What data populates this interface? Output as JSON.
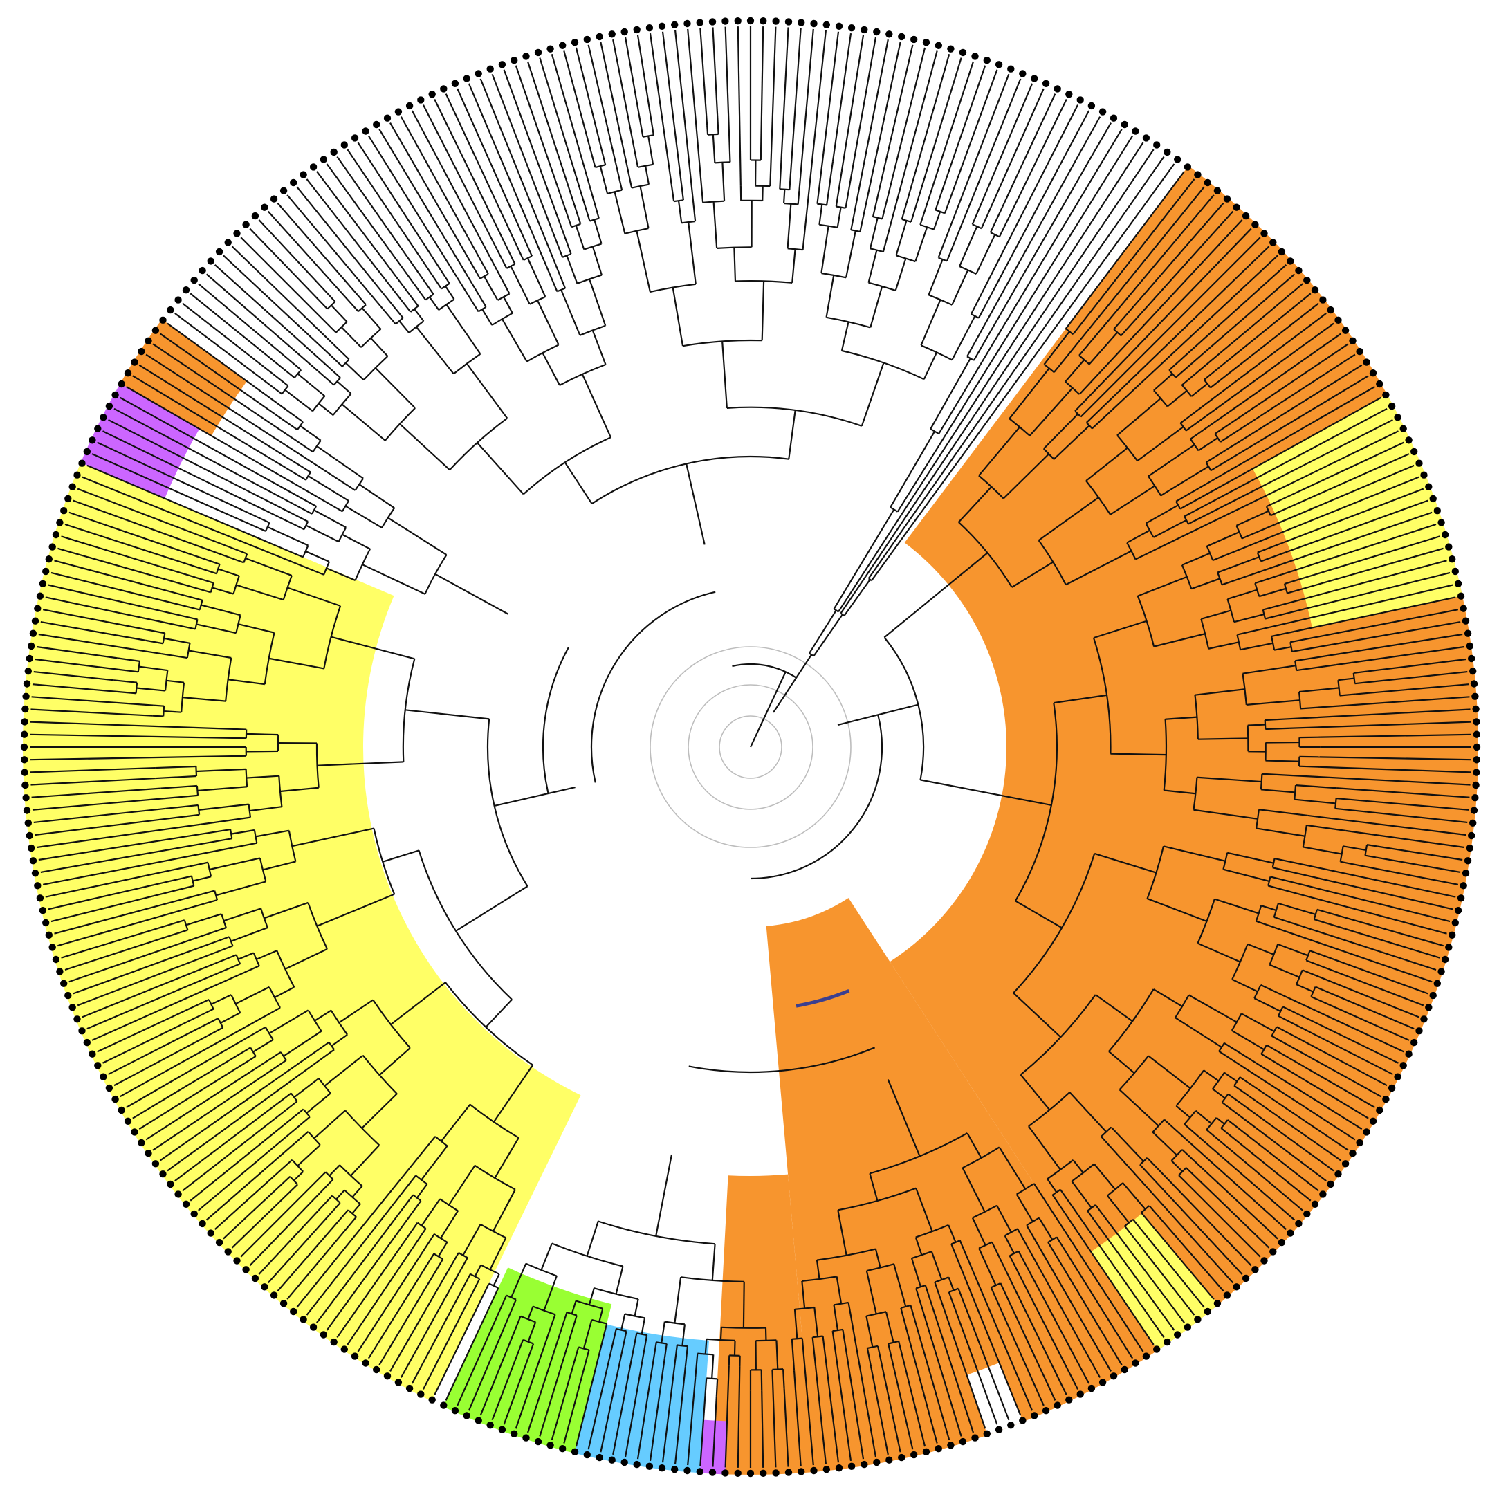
{
  "tree": {
    "layout": "circular",
    "leaf_marker": "filled-dot",
    "clades": [
      {
        "id": "orange-major",
        "color": "#F7952E"
      },
      {
        "id": "yellow-major",
        "color": "#FFFF66"
      },
      {
        "id": "yellow-minor-right",
        "color": "#FFFF66"
      },
      {
        "id": "yellow-minor-bottom",
        "color": "#FFFF66"
      },
      {
        "id": "orange-small-left",
        "color": "#F7952E"
      },
      {
        "id": "purple-left",
        "color": "#CC66FF"
      },
      {
        "id": "green-bottom",
        "color": "#99FF33"
      },
      {
        "id": "blue-bottom",
        "color": "#66CCFF"
      },
      {
        "id": "purple-bottom",
        "color": "#CC66FF"
      },
      {
        "id": "orange-bottom",
        "color": "#F7952E"
      }
    ],
    "highlighted_branch_color": "#3B3F8F"
  }
}
